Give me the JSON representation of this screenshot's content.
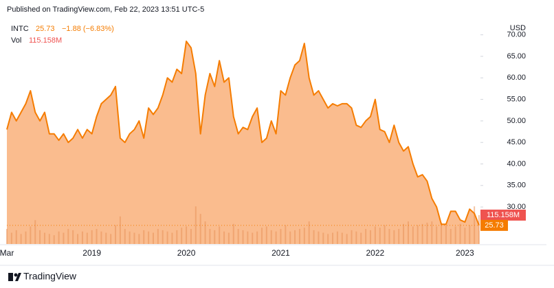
{
  "chart_data": {
    "type": "area",
    "publisher": "Published on TradingView.com, Feb 22, 2023 13:51 UTC-5",
    "change": "−1.88 (−6.83%)",
    "volume_label": "115.158M",
    "currency": "USD",
    "brand": "TradingView",
    "categories": [
      "Mar",
      null,
      null,
      null,
      null,
      null,
      null,
      null,
      null,
      null,
      null,
      null,
      null,
      null,
      null,
      null,
      null,
      null,
      "2019",
      null,
      null,
      null,
      null,
      null,
      null,
      null,
      null,
      null,
      null,
      null,
      null,
      null,
      null,
      null,
      null,
      null,
      null,
      null,
      "2020",
      null,
      null,
      null,
      null,
      null,
      null,
      null,
      null,
      null,
      null,
      null,
      null,
      null,
      null,
      null,
      null,
      null,
      null,
      null,
      "2021",
      null,
      null,
      null,
      null,
      null,
      null,
      null,
      null,
      null,
      null,
      null,
      null,
      null,
      null,
      null,
      null,
      null,
      null,
      null,
      "2022",
      null,
      null,
      null,
      null,
      null,
      null,
      null,
      null,
      null,
      null,
      null,
      null,
      null,
      null,
      null,
      null,
      null,
      null,
      "2023",
      null,
      null,
      null
    ],
    "series": [
      {
        "name": "INTC",
        "color": "#f57c00",
        "values": [
          48,
          52,
          50,
          52,
          54,
          57,
          52,
          50,
          52,
          47,
          47,
          45.5,
          47,
          45,
          46,
          48,
          46,
          48,
          47,
          51,
          54,
          55,
          56,
          58,
          46,
          45,
          47,
          48,
          50,
          46,
          53,
          51.5,
          53,
          56,
          60,
          59,
          62,
          61,
          68.5,
          67,
          61,
          47,
          56,
          61,
          58,
          64,
          59,
          60,
          51,
          47,
          48.5,
          48,
          51,
          53,
          45,
          46,
          50,
          47,
          57,
          56,
          60,
          63,
          64,
          68,
          60,
          56,
          57,
          55,
          53,
          54,
          53.5,
          54,
          54,
          53,
          49,
          48.5,
          50,
          51,
          55,
          48,
          47.5,
          45,
          49,
          45,
          43,
          44,
          40,
          37,
          37.5,
          36,
          32,
          30,
          26,
          26,
          29,
          29,
          27,
          26.5,
          29.5,
          28.5,
          25.73
        ]
      },
      {
        "name": "Vol",
        "color": "#ef5350",
        "axis": "y2",
        "values": [
          60,
          45,
          55,
          40,
          50,
          70,
          95,
          55,
          45,
          40,
          35,
          50,
          45,
          60,
          55,
          40,
          50,
          45,
          55,
          60,
          50,
          45,
          40,
          75,
          110,
          60,
          50,
          45,
          40,
          55,
          50,
          45,
          60,
          55,
          50,
          45,
          55,
          65,
          70,
          60,
          150,
          120,
          90,
          60,
          55,
          70,
          50,
          45,
          80,
          60,
          55,
          50,
          45,
          50,
          65,
          70,
          55,
          50,
          60,
          75,
          50,
          55,
          60,
          65,
          90,
          55,
          50,
          45,
          40,
          45,
          50,
          45,
          40,
          55,
          50,
          45,
          60,
          55,
          70,
          65,
          75,
          60,
          55,
          60,
          80,
          90,
          70,
          75,
          80,
          85,
          90,
          70,
          85,
          75,
          60,
          70,
          80,
          65,
          75,
          150,
          115.158
        ]
      }
    ],
    "ylim": [
      21.4,
      73.3
    ],
    "yticks": [
      {
        "value": 30,
        "label": "30.00"
      },
      {
        "value": 35,
        "label": "35.00"
      },
      {
        "value": 40,
        "label": "40.00"
      },
      {
        "value": 45,
        "label": "45.00"
      },
      {
        "value": 50,
        "label": "50.00"
      },
      {
        "value": 55,
        "label": "55.00"
      },
      {
        "value": 60,
        "label": "60.00"
      },
      {
        "value": 65,
        "label": "65.00"
      },
      {
        "value": 70,
        "label": "70.00"
      }
    ],
    "y2lim": [
      0,
      890
    ]
  }
}
